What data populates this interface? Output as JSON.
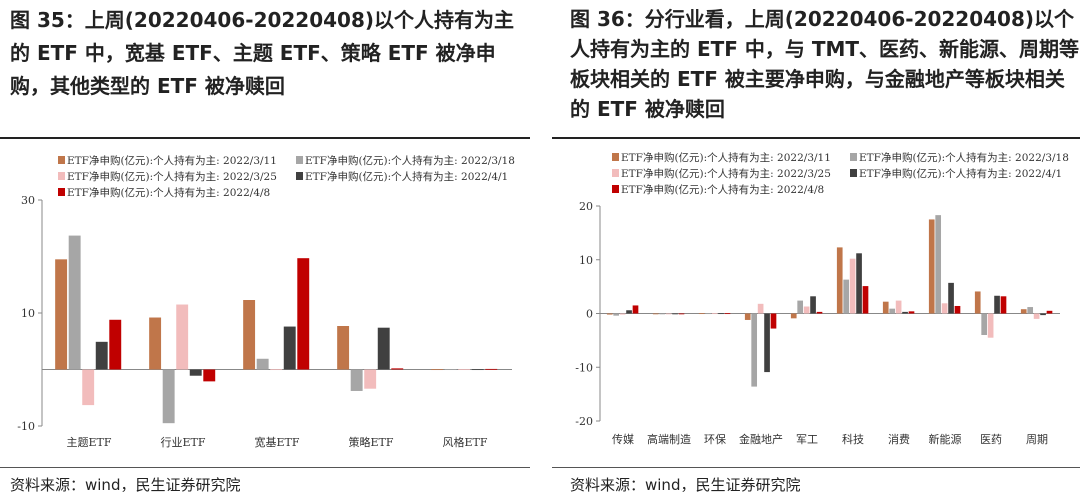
{
  "source_left": "资料来源：wind，民生证券研究院",
  "source_right": "资料来源：wind，民生证券研究院",
  "colors": {
    "s1": "#C0764A",
    "s2": "#A6A6A6",
    "s3": "#F2BCBC",
    "s4": "#404040",
    "s5": "#C00000"
  },
  "chart_data": [
    {
      "type": "bar",
      "title": "图 35：上周(20220406-20220408)以个人持有为主的 ETF 中，宽基 ETF、主题 ETF、策略 ETF 被净申购，其他类型的 ETF 被净赎回",
      "categories": [
        "主题ETF",
        "行业ETF",
        "宽基ETF",
        "策略ETF",
        "风格ETF"
      ],
      "ylim": [
        -10,
        30
      ],
      "yticks": [
        -10,
        10,
        30
      ],
      "legend_position": "top",
      "series": [
        {
          "name": "ETF净申购(亿元):个人持有为主: 2022/3/11",
          "values": [
            19.5,
            9.2,
            12.3,
            7.7,
            0.05
          ]
        },
        {
          "name": "ETF净申购(亿元):个人持有为主: 2022/3/18",
          "values": [
            23.7,
            -9.5,
            1.9,
            -3.8,
            0.05
          ]
        },
        {
          "name": "ETF净申购(亿元):个人持有为主: 2022/3/25",
          "values": [
            -6.3,
            11.5,
            0.05,
            -3.4,
            0.05
          ]
        },
        {
          "name": "ETF净申购(亿元):个人持有为主: 2022/4/1",
          "values": [
            4.9,
            -1.1,
            7.6,
            7.4,
            0.05
          ]
        },
        {
          "name": "ETF净申购(亿元):个人持有为主: 2022/4/8",
          "values": [
            8.8,
            -2.1,
            19.7,
            0.2,
            0.1
          ]
        }
      ]
    },
    {
      "type": "bar",
      "title": "图 36：分行业看，上周(20220406-20220408)以个人持有为主的 ETF 中，与 TMT、医药、新能源、周期等板块相关的 ETF 被主要净申购，与金融地产等板块相关的 ETF 被净赎回",
      "categories": [
        "传媒",
        "高端制造",
        "环保",
        "金融地产",
        "军工",
        "科技",
        "消费",
        "新能源",
        "医药",
        "周期"
      ],
      "ylim": [
        -20,
        20
      ],
      "yticks": [
        -20,
        -10,
        0,
        10,
        20
      ],
      "legend_position": "top",
      "series": [
        {
          "name": "ETF净申购(亿元):个人持有为主: 2022/3/11",
          "values": [
            -0.2,
            -0.1,
            0.05,
            -1.2,
            -0.9,
            12.3,
            2.2,
            17.5,
            4.1,
            0.8
          ]
        },
        {
          "name": "ETF净申购(亿元):个人持有为主: 2022/3/18",
          "values": [
            -0.4,
            -0.1,
            0.05,
            -13.6,
            2.4,
            6.3,
            0.9,
            18.3,
            -4.0,
            1.2
          ]
        },
        {
          "name": "ETF净申购(亿元):个人持有为主: 2022/3/25",
          "values": [
            -0.2,
            -0.1,
            0.05,
            1.8,
            1.3,
            10.2,
            2.4,
            1.9,
            -4.5,
            -1.0
          ]
        },
        {
          "name": "ETF净申购(亿元):个人持有为主: 2022/4/1",
          "values": [
            0.6,
            -0.1,
            0.05,
            -10.9,
            3.2,
            11.2,
            0.3,
            5.7,
            3.3,
            -0.3
          ]
        },
        {
          "name": "ETF净申购(亿元):个人持有为主: 2022/4/8",
          "values": [
            1.5,
            -0.1,
            0.05,
            -2.8,
            0.3,
            5.1,
            0.4,
            1.4,
            3.2,
            0.5
          ]
        }
      ]
    }
  ]
}
